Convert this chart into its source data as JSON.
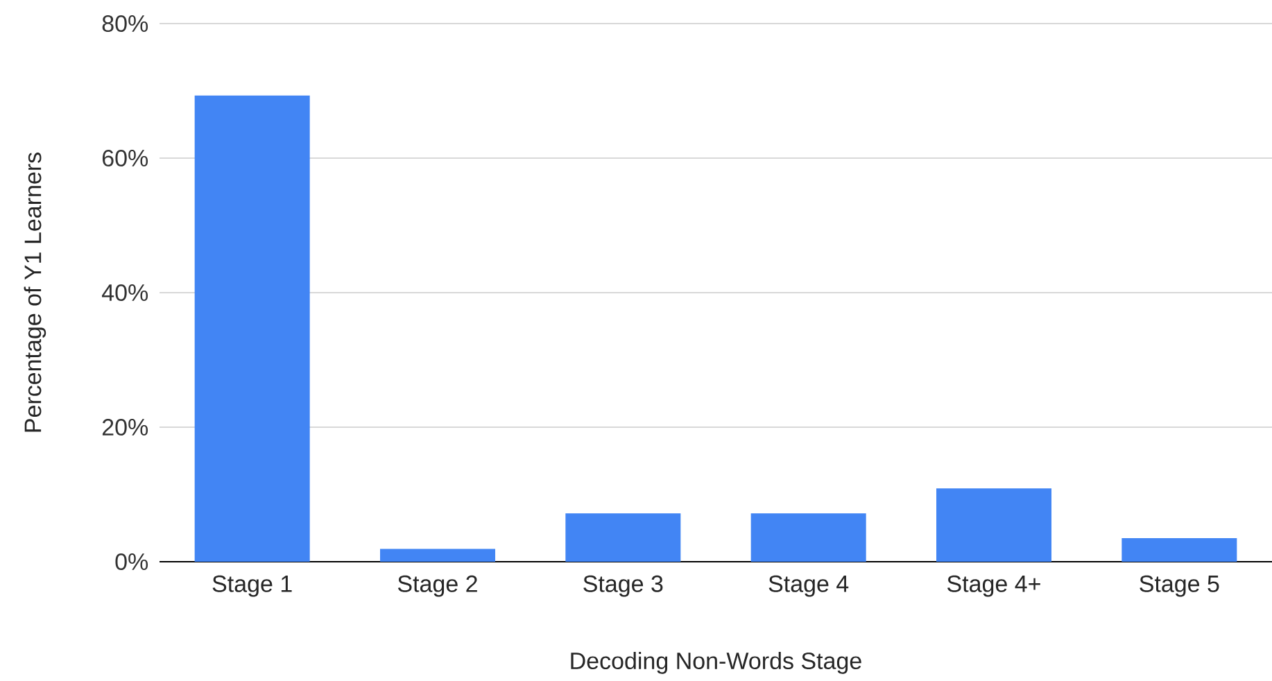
{
  "chart_data": {
    "type": "bar",
    "xlabel": "Decoding Non-Words Stage",
    "ylabel": "Percentage of Y1 Learners",
    "categories": [
      "Stage 1",
      "Stage 2",
      "Stage 3",
      "Stage 4",
      "Stage 4+",
      "Stage 5"
    ],
    "values": [
      69.3,
      1.9,
      7.2,
      7.2,
      10.9,
      3.5
    ],
    "color": "#4285f4",
    "ylim": [
      0,
      80
    ],
    "yticks": [
      {
        "value": 0,
        "label": "0%"
      },
      {
        "value": 20,
        "label": "20%"
      },
      {
        "value": 40,
        "label": "40%"
      },
      {
        "value": 60,
        "label": "60%"
      },
      {
        "value": 80,
        "label": "80%"
      }
    ],
    "grid": "y"
  }
}
